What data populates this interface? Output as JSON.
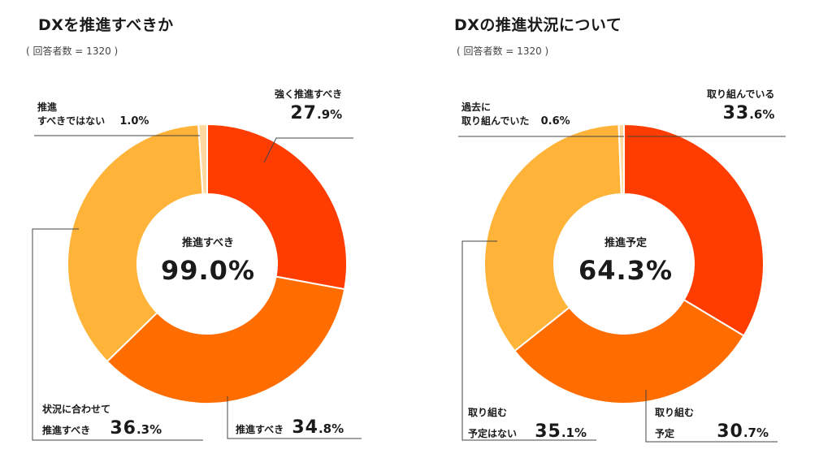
{
  "chart_data": [
    {
      "type": "pie",
      "title": "DXを推進すべきか",
      "subtitle": "( 回答者数 = 1320 )",
      "center_label": "推進すべき",
      "center_value": "99.0%",
      "slices": [
        {
          "label": "強く推進すべき",
          "value": 27.9,
          "int": "27",
          "dec": ".9%",
          "color": "#ff3d00"
        },
        {
          "label": "推進すべき",
          "value": 34.8,
          "int": "34",
          "dec": ".8%",
          "color": "#ff6d00"
        },
        {
          "label": "状況に合わせて推進すべき",
          "line1": "状況に合わせて",
          "line2": "推進すべき",
          "value": 36.3,
          "int": "36",
          "dec": ".3%",
          "color": "#ffb338"
        },
        {
          "label": "推進すべきではない",
          "line1": "推進",
          "line2": "すべきではない",
          "value": 1.0,
          "text": "1.0%",
          "color": "#ffd9a0"
        }
      ]
    },
    {
      "type": "pie",
      "title": "DXの推進状況について",
      "subtitle": "( 回答者数 = 1320 )",
      "center_label": "推進予定",
      "center_value": "64.3%",
      "slices": [
        {
          "label": "取り組んでいる",
          "value": 33.6,
          "int": "33",
          "dec": ".6%",
          "color": "#ff3d00"
        },
        {
          "label": "取り組む予定",
          "line1": "取り組む",
          "line2": "予定",
          "value": 30.7,
          "int": "30",
          "dec": ".7%",
          "color": "#ff6d00"
        },
        {
          "label": "取り組む予定はない",
          "line1": "取り組む",
          "line2": "予定はない",
          "value": 35.1,
          "int": "35",
          "dec": ".1%",
          "color": "#ffb338"
        },
        {
          "label": "過去に取り組んでいた",
          "line1": "過去に",
          "line2": "取り組んでいた",
          "value": 0.6,
          "text": "0.6%",
          "color": "#ffd9a0"
        }
      ]
    }
  ]
}
